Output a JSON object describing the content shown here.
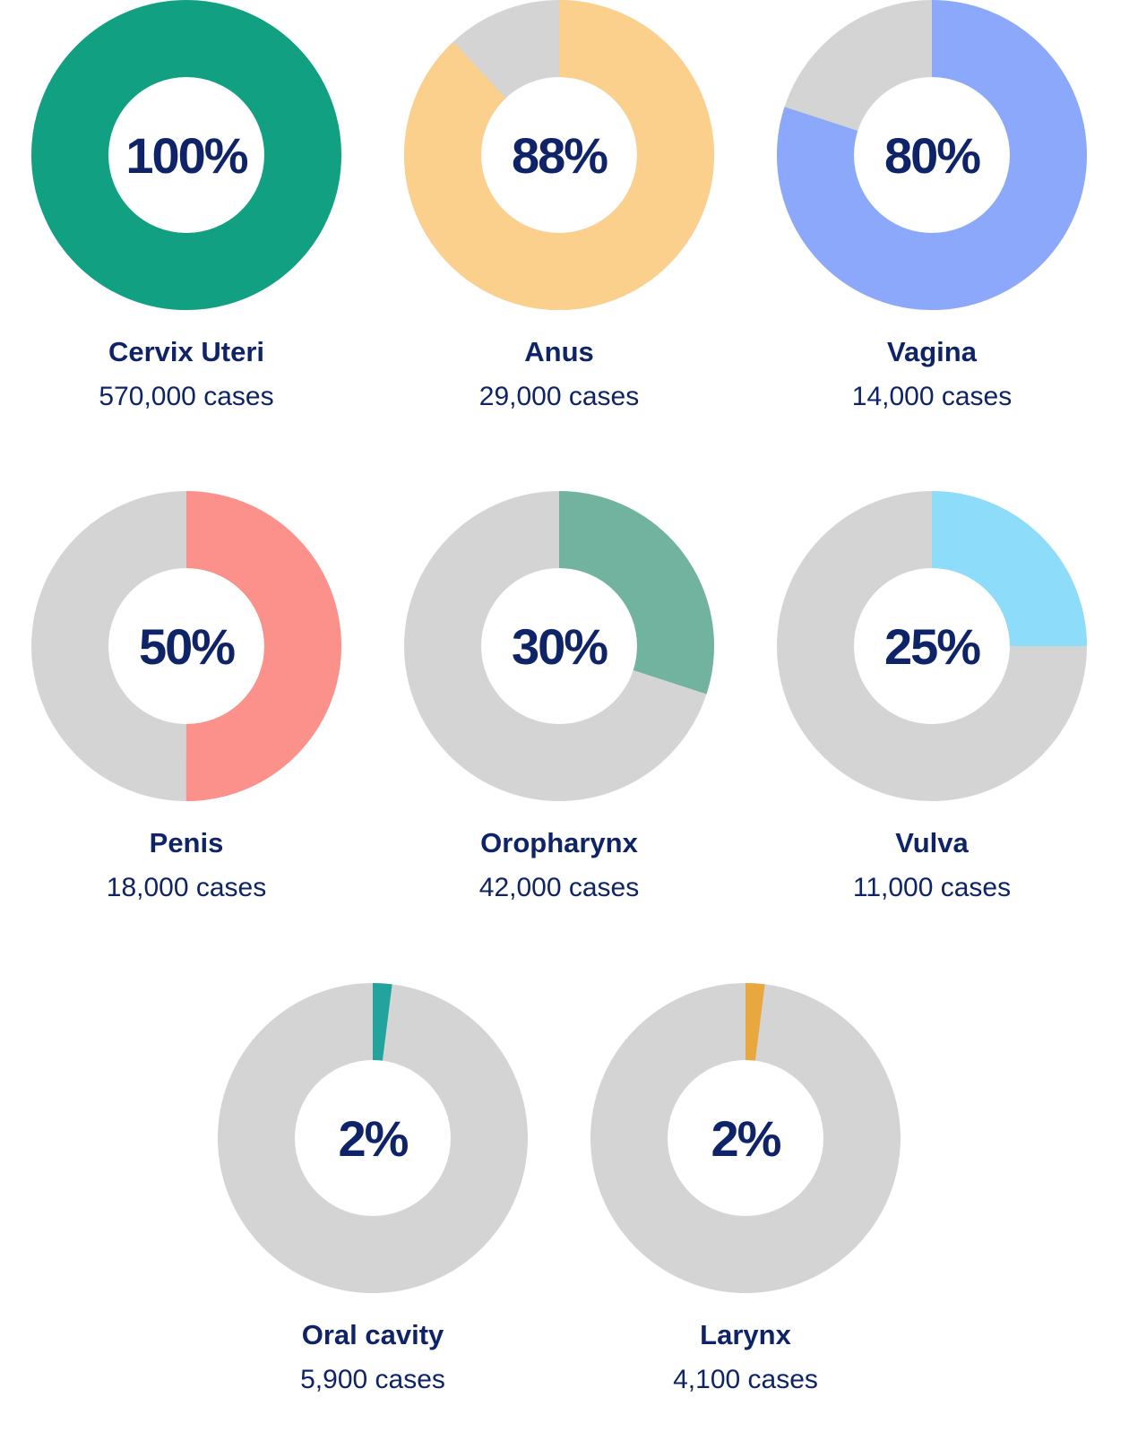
{
  "chart_data": {
    "type": "donut",
    "colors": {
      "track": "#d4d4d4",
      "text": "#0f2468"
    },
    "items": [
      {
        "label": "Cervix Uteri",
        "percent": 100,
        "percent_label": "100%",
        "cases": "570,000 cases",
        "color": "#12a083"
      },
      {
        "label": "Anus",
        "percent": 88,
        "percent_label": "88%",
        "cases": "29,000 cases",
        "color": "#fbcf8c"
      },
      {
        "label": "Vagina",
        "percent": 80,
        "percent_label": "80%",
        "cases": "14,000 cases",
        "color": "#8ca8fa"
      },
      {
        "label": "Penis",
        "percent": 50,
        "percent_label": "50%",
        "cases": "18,000 cases",
        "color": "#fb918a"
      },
      {
        "label": "Oropharynx",
        "percent": 30,
        "percent_label": "30%",
        "cases": "42,000 cases",
        "color": "#72b3a0"
      },
      {
        "label": "Vulva",
        "percent": 25,
        "percent_label": "25%",
        "cases": "11,000 cases",
        "color": "#8ddcfa"
      },
      {
        "label": "Oral cavity",
        "percent": 2,
        "percent_label": "2%",
        "cases": "5,900 cases",
        "color": "#22a39e"
      },
      {
        "label": "Larynx",
        "percent": 2,
        "percent_label": "2%",
        "cases": "4,100 cases",
        "color": "#e9a73f"
      }
    ]
  }
}
